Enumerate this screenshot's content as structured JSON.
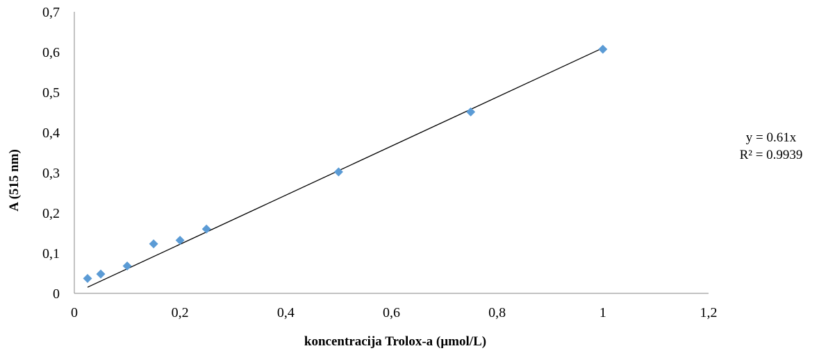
{
  "chart_data": {
    "type": "scatter",
    "xlabel": "koncentracija Trolox-a (µmol/L)",
    "ylabel": "A (515 nm)",
    "xlim": [
      0,
      1.2
    ],
    "ylim": [
      0,
      0.7
    ],
    "xticks": [
      "0",
      "0,2",
      "0,4",
      "0,6",
      "0,8",
      "1",
      "1,2"
    ],
    "yticks": [
      "0",
      "0,1",
      "0,2",
      "0,3",
      "0,4",
      "0,5",
      "0,6",
      "0,7"
    ],
    "grid": false,
    "series": [
      {
        "marker": "diamond",
        "color": "#5b9bd5",
        "points": [
          {
            "x": 0.025,
            "y": 0.037
          },
          {
            "x": 0.05,
            "y": 0.048
          },
          {
            "x": 0.1,
            "y": 0.068
          },
          {
            "x": 0.15,
            "y": 0.123
          },
          {
            "x": 0.2,
            "y": 0.132
          },
          {
            "x": 0.25,
            "y": 0.16
          },
          {
            "x": 0.5,
            "y": 0.302
          },
          {
            "x": 0.75,
            "y": 0.451
          },
          {
            "x": 1.0,
            "y": 0.607
          }
        ]
      }
    ],
    "trendline": {
      "slope": 0.61,
      "x_from": 0.025,
      "x_to": 1.0,
      "color": "#000000",
      "equation": "y = 0.61x",
      "r_squared": "R² = 0.9939"
    }
  }
}
